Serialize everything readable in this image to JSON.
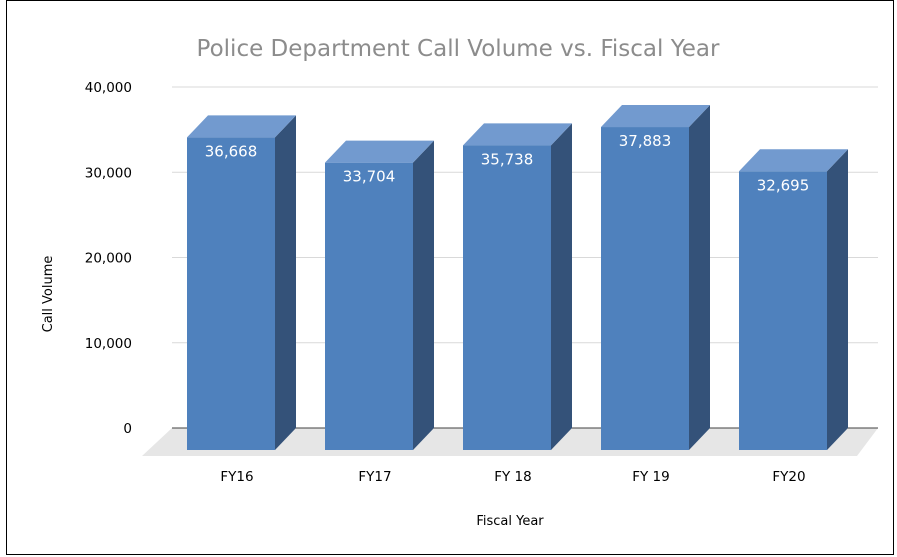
{
  "chart_data": {
    "type": "bar",
    "title": "Police Department Call Volume vs. Fiscal Year",
    "xlabel": "Fiscal Year",
    "ylabel": "Call Volume",
    "categories": [
      "FY16",
      "FY17",
      "FY 18",
      "FY 19",
      "FY20"
    ],
    "values": [
      36668,
      33704,
      35738,
      37883,
      32695
    ],
    "data_labels": [
      "36,668",
      "33,704",
      "35,738",
      "37,883",
      "32,695"
    ],
    "y_ticks": [
      0,
      10000,
      20000,
      30000,
      40000
    ],
    "y_tick_labels": [
      "0",
      "10,000",
      "20,000",
      "30,000",
      "40,000"
    ],
    "ylim": [
      0,
      40000
    ],
    "grid": true,
    "style": "3d-column",
    "legend": "none",
    "colors": {
      "bar_front": "#4f81bd",
      "bar_top": "#729acf",
      "bar_side": "#345279",
      "floor": "#e6e6e6",
      "grid": "#d9d9d9"
    }
  }
}
